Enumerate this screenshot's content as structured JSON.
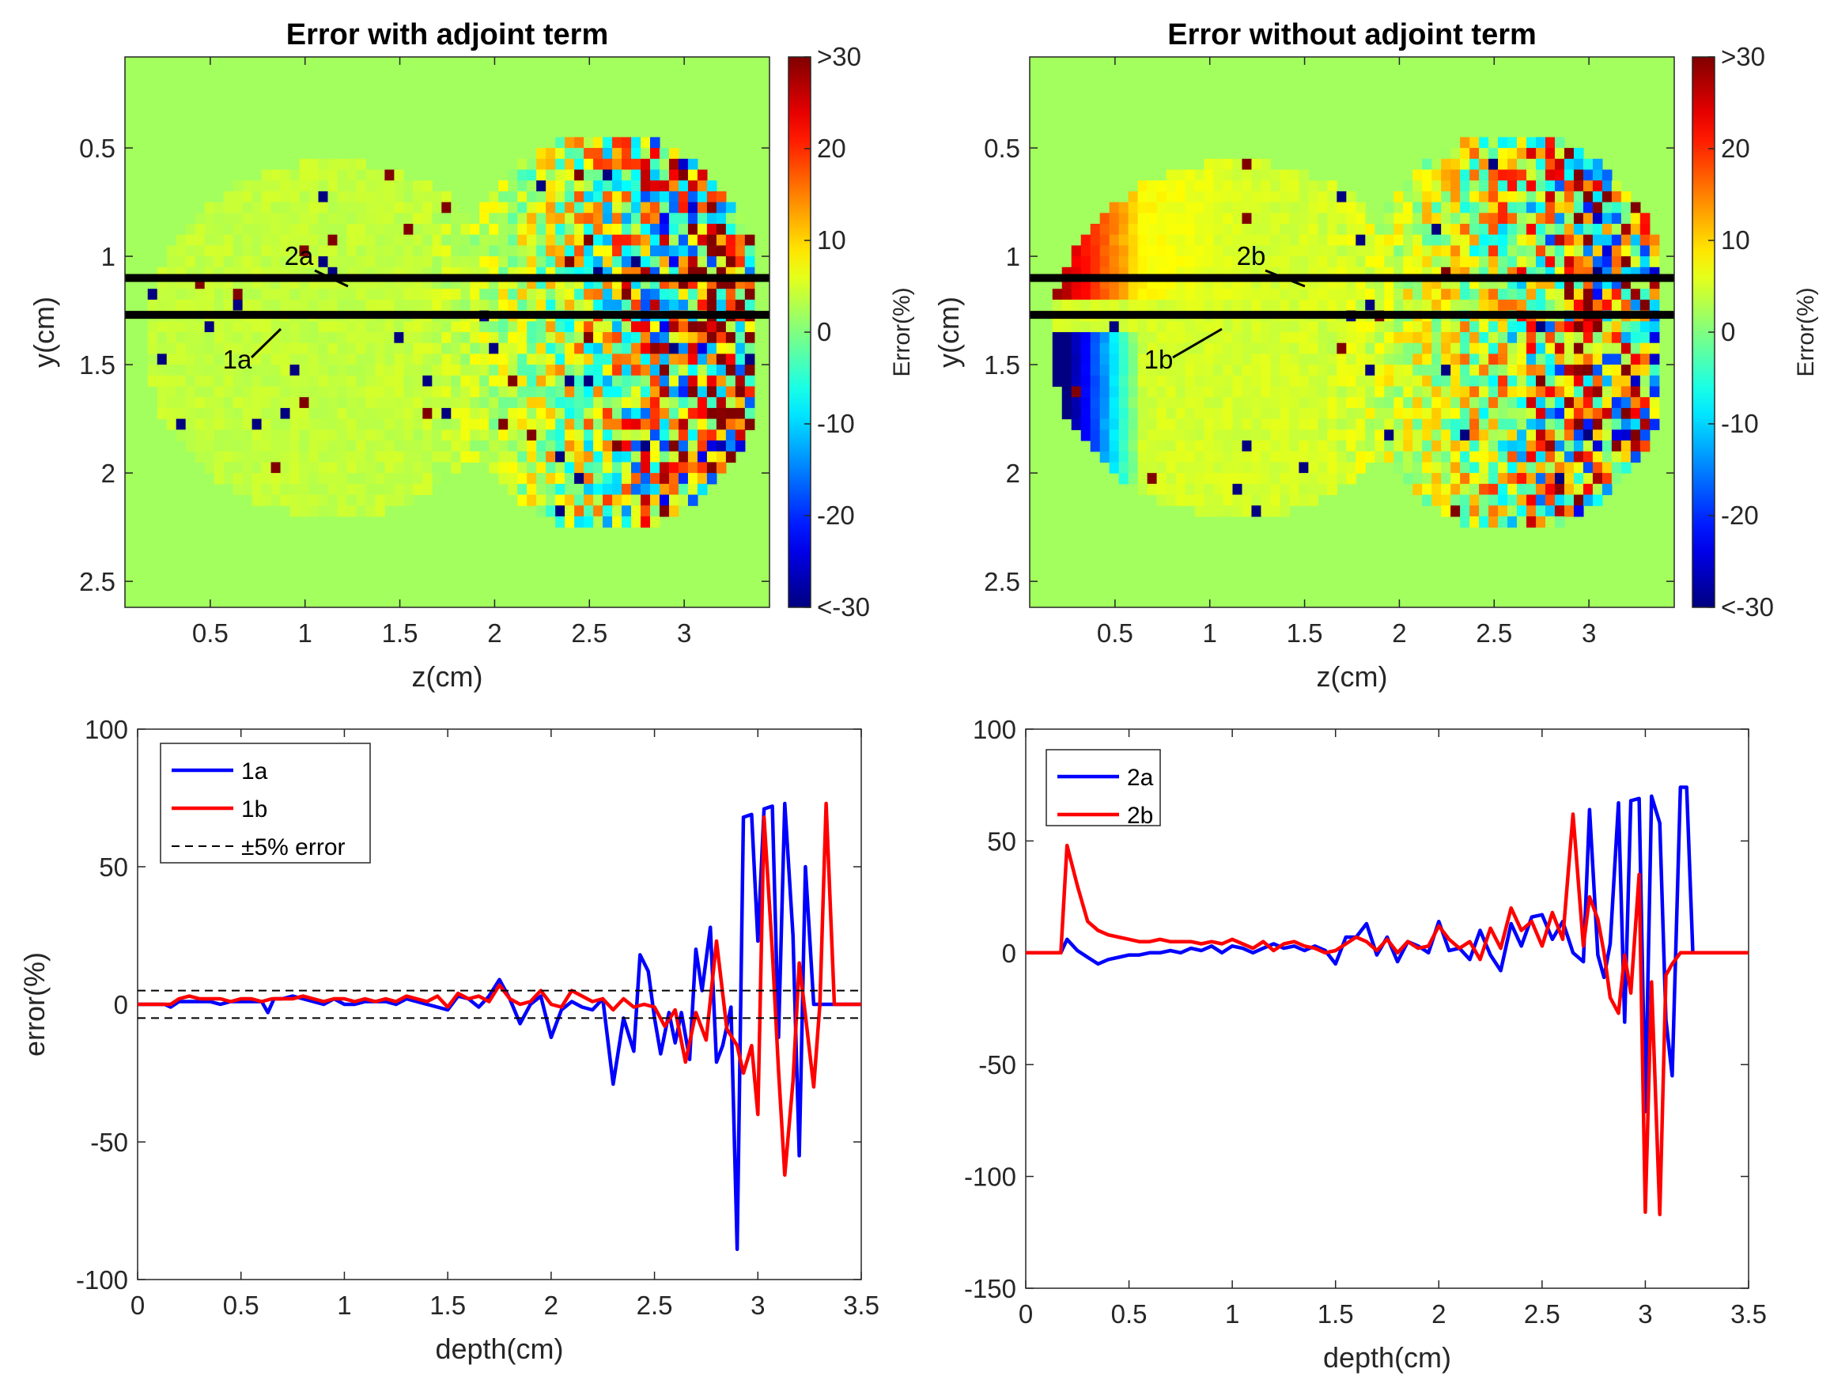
{
  "chart_data": [
    {
      "type": "heatmap",
      "id": "heatmap-a",
      "title": "Error with adjoint term",
      "xlabel": "z(cm)",
      "ylabel": "y(cm)",
      "xlim": [
        0.05,
        3.45
      ],
      "ylim": [
        2.62,
        0.08
      ],
      "xticks": [
        "0.5",
        "1",
        "1.5",
        "2",
        "2.5",
        "3"
      ],
      "xtick_values": [
        0.5,
        1,
        1.5,
        2,
        2.5,
        3
      ],
      "yticks": [
        "0.5",
        "1",
        "1.5",
        "2",
        "2.5"
      ],
      "ytick_values": [
        0.5,
        1,
        1.5,
        2,
        2.5
      ],
      "colorbar": {
        "label": "Error(%)",
        "range": [
          -30,
          30
        ],
        "ticks": [
          ">30",
          "20",
          "10",
          "0",
          "-10",
          "-20",
          "<-30"
        ],
        "tick_values": [
          30,
          20,
          10,
          0,
          -10,
          -20,
          -30
        ]
      },
      "mode": "adjoint",
      "lines": [
        {
          "label": "1a",
          "y": 1.27
        },
        {
          "label": "2a",
          "y": 1.1
        }
      ]
    },
    {
      "type": "heatmap",
      "id": "heatmap-b",
      "title": "Error without adjoint term",
      "xlabel": "z(cm)",
      "ylabel": "y(cm)",
      "xlim": [
        0.05,
        3.45
      ],
      "ylim": [
        2.62,
        0.08
      ],
      "xticks": [
        "0.5",
        "1",
        "1.5",
        "2",
        "2.5",
        "3"
      ],
      "xtick_values": [
        0.5,
        1,
        1.5,
        2,
        2.5,
        3
      ],
      "yticks": [
        "0.5",
        "1",
        "1.5",
        "2",
        "2.5"
      ],
      "ytick_values": [
        0.5,
        1,
        1.5,
        2,
        2.5
      ],
      "colorbar": {
        "label": "Error(%)",
        "range": [
          -30,
          30
        ],
        "ticks": [
          ">30",
          "20",
          "10",
          "0",
          "-10",
          "-20",
          "<-30"
        ],
        "tick_values": [
          30,
          20,
          10,
          0,
          -10,
          -20,
          -30
        ]
      },
      "mode": "noadjoint",
      "lines": [
        {
          "label": "1b",
          "y": 1.27
        },
        {
          "label": "2b",
          "y": 1.1
        }
      ]
    },
    {
      "type": "line",
      "id": "line-1",
      "title": "",
      "xlabel": "depth(cm)",
      "ylabel": "error(%)",
      "xlim": [
        0,
        3.5
      ],
      "ylim": [
        -100,
        100
      ],
      "xticks": [
        "0",
        "0.5",
        "1",
        "1.5",
        "2",
        "2.5",
        "3",
        "3.5"
      ],
      "xtick_values": [
        0,
        0.5,
        1,
        1.5,
        2,
        2.5,
        3,
        3.5
      ],
      "yticks": [
        "100",
        "50",
        "0",
        "-50",
        "-100"
      ],
      "ytick_values": [
        100,
        50,
        0,
        -50,
        -100
      ],
      "legend_position": "top-left",
      "series": [
        {
          "name": "1a",
          "color": "#0000ff",
          "x": [
            0,
            0.13,
            0.16,
            0.2,
            0.25,
            0.3,
            0.35,
            0.4,
            0.45,
            0.5,
            0.55,
            0.6,
            0.63,
            0.66,
            0.7,
            0.75,
            0.8,
            0.85,
            0.9,
            0.95,
            1.0,
            1.05,
            1.1,
            1.15,
            1.2,
            1.25,
            1.3,
            1.35,
            1.4,
            1.45,
            1.5,
            1.55,
            1.6,
            1.65,
            1.7,
            1.75,
            1.8,
            1.85,
            1.9,
            1.95,
            2.0,
            2.05,
            2.1,
            2.15,
            2.2,
            2.25,
            2.3,
            2.35,
            2.4,
            2.43,
            2.47,
            2.5,
            2.53,
            2.57,
            2.6,
            2.63,
            2.67,
            2.7,
            2.73,
            2.77,
            2.8,
            2.83,
            2.87,
            2.9,
            2.93,
            2.97,
            3.0,
            3.03,
            3.07,
            3.1,
            3.13,
            3.17,
            3.2,
            3.23,
            3.27,
            3.3,
            3.32,
            3.35,
            3.38,
            3.4,
            3.5
          ],
          "values": [
            0,
            0,
            -1,
            1,
            1,
            1,
            1,
            0,
            1,
            1,
            1,
            1,
            -3,
            2,
            2,
            3,
            2,
            1,
            0,
            2,
            0,
            0,
            1,
            1,
            1,
            0,
            2,
            1,
            0,
            -1,
            -2,
            3,
            2,
            -1,
            3,
            9,
            2,
            -7,
            0,
            3,
            -12,
            -2,
            1,
            -1,
            -2,
            2,
            -29,
            -5,
            -17,
            18,
            12,
            -5,
            -18,
            -3,
            -14,
            -3,
            -20,
            20,
            5,
            28,
            -21,
            -15,
            -1,
            -89,
            68,
            69,
            23,
            71,
            72,
            -12,
            73,
            25,
            -55,
            50,
            0,
            0,
            0,
            0,
            0,
            0,
            0
          ]
        },
        {
          "name": "1b",
          "color": "#ff0000",
          "x": [
            0,
            0.13,
            0.16,
            0.2,
            0.25,
            0.3,
            0.35,
            0.4,
            0.45,
            0.5,
            0.55,
            0.6,
            0.65,
            0.7,
            0.75,
            0.8,
            0.85,
            0.9,
            0.95,
            1.0,
            1.05,
            1.1,
            1.15,
            1.2,
            1.25,
            1.3,
            1.35,
            1.4,
            1.45,
            1.5,
            1.55,
            1.6,
            1.65,
            1.7,
            1.75,
            1.8,
            1.85,
            1.9,
            1.95,
            2.0,
            2.05,
            2.1,
            2.15,
            2.2,
            2.25,
            2.3,
            2.35,
            2.4,
            2.45,
            2.5,
            2.55,
            2.6,
            2.65,
            2.7,
            2.75,
            2.8,
            2.85,
            2.9,
            2.93,
            2.97,
            3.0,
            3.03,
            3.07,
            3.1,
            3.13,
            3.17,
            3.2,
            3.23,
            3.27,
            3.3,
            3.33,
            3.37,
            3.4,
            3.5
          ],
          "values": [
            0,
            0,
            0,
            2,
            3,
            2,
            2,
            2,
            1,
            2,
            2,
            1,
            2,
            2,
            2,
            3,
            2,
            1,
            2,
            2,
            1,
            2,
            1,
            2,
            1,
            3,
            2,
            1,
            3,
            -1,
            4,
            2,
            3,
            1,
            7,
            2,
            0,
            1,
            5,
            0,
            -1,
            5,
            3,
            1,
            2,
            -2,
            2,
            -1,
            0,
            -1,
            -8,
            -2,
            -21,
            -3,
            -13,
            23,
            -9,
            -15,
            -25,
            -15,
            -40,
            68,
            19,
            -24,
            -62,
            -28,
            15,
            -4,
            -30,
            0,
            73,
            0,
            0,
            0
          ]
        },
        {
          "name": "±5% error",
          "color": "#000000",
          "dashed": true,
          "x": [
            0,
            3.5
          ],
          "values": [
            5,
            5
          ]
        },
        {
          "name": "-5%",
          "color": "#000000",
          "dashed": true,
          "in_legend": false,
          "x": [
            0,
            3.5
          ],
          "values": [
            -5,
            -5
          ]
        }
      ]
    },
    {
      "type": "line",
      "id": "line-2",
      "title": "",
      "xlabel": "depth(cm)",
      "ylabel": "",
      "xlim": [
        0,
        3.5
      ],
      "ylim": [
        -150,
        100
      ],
      "xticks": [
        "0",
        "0.5",
        "1",
        "1.5",
        "2",
        "2.5",
        "3",
        "3.5"
      ],
      "xtick_values": [
        0,
        0.5,
        1,
        1.5,
        2,
        2.5,
        3,
        3.5
      ],
      "yticks": [
        "100",
        "50",
        "0",
        "-50",
        "-100",
        "-150"
      ],
      "ytick_values": [
        100,
        50,
        0,
        -50,
        -100,
        -150
      ],
      "legend_position": "top-left",
      "series": [
        {
          "name": "2a",
          "color": "#0000ff",
          "x": [
            0,
            0.17,
            0.2,
            0.25,
            0.3,
            0.35,
            0.4,
            0.45,
            0.5,
            0.55,
            0.6,
            0.65,
            0.7,
            0.75,
            0.8,
            0.85,
            0.9,
            0.95,
            1.0,
            1.05,
            1.1,
            1.15,
            1.2,
            1.25,
            1.3,
            1.35,
            1.4,
            1.45,
            1.5,
            1.55,
            1.6,
            1.65,
            1.7,
            1.75,
            1.8,
            1.85,
            1.9,
            1.95,
            2.0,
            2.05,
            2.1,
            2.15,
            2.2,
            2.25,
            2.3,
            2.35,
            2.4,
            2.45,
            2.5,
            2.55,
            2.6,
            2.65,
            2.7,
            2.73,
            2.77,
            2.8,
            2.83,
            2.87,
            2.9,
            2.93,
            2.97,
            3.0,
            3.03,
            3.07,
            3.1,
            3.13,
            3.17,
            3.2,
            3.23,
            3.27,
            3.3,
            3.33,
            3.37,
            3.4,
            3.5
          ],
          "values": [
            0,
            0,
            6,
            1,
            -2,
            -5,
            -3,
            -2,
            -1,
            -1,
            0,
            0,
            1,
            0,
            2,
            1,
            3,
            0,
            3,
            2,
            0,
            2,
            4,
            2,
            3,
            1,
            3,
            1,
            -5,
            7,
            7,
            13,
            -1,
            7,
            -4,
            5,
            3,
            0,
            14,
            1,
            2,
            -3,
            10,
            -1,
            -8,
            13,
            3,
            16,
            17,
            6,
            14,
            0,
            -4,
            64,
            -1,
            -11,
            4,
            67,
            -31,
            68,
            69,
            -71,
            70,
            58,
            -30,
            -55,
            74,
            74,
            0,
            0,
            0,
            0,
            0,
            0,
            0
          ]
        },
        {
          "name": "2b",
          "color": "#ff0000",
          "x": [
            0,
            0.17,
            0.2,
            0.25,
            0.3,
            0.35,
            0.4,
            0.45,
            0.5,
            0.55,
            0.6,
            0.65,
            0.7,
            0.75,
            0.8,
            0.85,
            0.9,
            0.95,
            1.0,
            1.05,
            1.1,
            1.15,
            1.2,
            1.25,
            1.3,
            1.35,
            1.4,
            1.45,
            1.5,
            1.55,
            1.6,
            1.65,
            1.7,
            1.75,
            1.8,
            1.85,
            1.9,
            1.95,
            2.0,
            2.05,
            2.1,
            2.15,
            2.2,
            2.25,
            2.3,
            2.35,
            2.4,
            2.45,
            2.5,
            2.55,
            2.6,
            2.65,
            2.7,
            2.73,
            2.77,
            2.8,
            2.83,
            2.87,
            2.9,
            2.93,
            2.97,
            3.0,
            3.03,
            3.07,
            3.1,
            3.13,
            3.17,
            3.2,
            3.23,
            3.27,
            3.3,
            3.33,
            3.37,
            3.4,
            3.5
          ],
          "values": [
            0,
            0,
            48,
            30,
            14,
            10,
            8,
            7,
            6,
            5,
            5,
            6,
            5,
            5,
            5,
            4,
            5,
            4,
            6,
            4,
            2,
            5,
            1,
            4,
            5,
            3,
            2,
            0,
            1,
            4,
            7,
            5,
            1,
            6,
            0,
            5,
            2,
            3,
            12,
            6,
            2,
            5,
            -3,
            11,
            2,
            20,
            10,
            14,
            3,
            18,
            6,
            62,
            3,
            25,
            15,
            0,
            -20,
            -27,
            -1,
            -18,
            35,
            -116,
            -13,
            -117,
            -10,
            -5,
            0,
            0,
            0,
            0,
            0,
            0,
            0,
            0,
            0
          ]
        }
      ]
    }
  ],
  "annotations": {
    "heatmap_a": {
      "line_1a": "1a",
      "line_2a": "2a"
    },
    "heatmap_b": {
      "line_1b": "1b",
      "line_2b": "2b"
    }
  }
}
